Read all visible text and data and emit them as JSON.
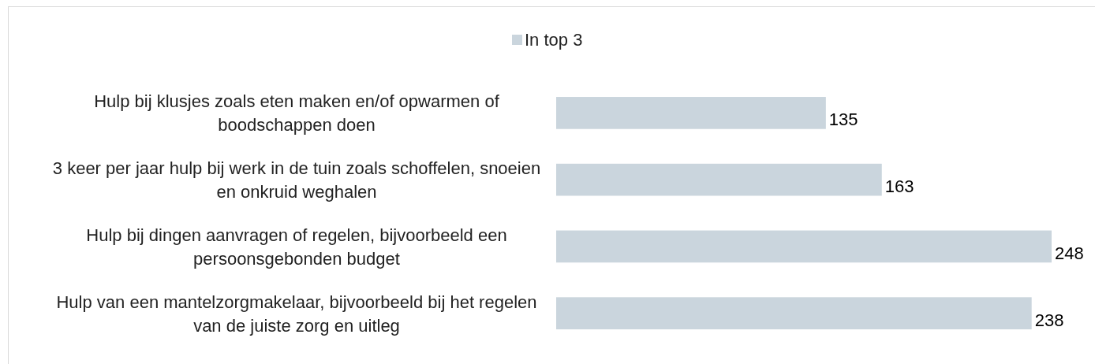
{
  "chart_data": {
    "type": "bar",
    "orientation": "horizontal",
    "data_labels": true,
    "legend": "top",
    "categories": [
      "Hulp bij klusjes zoals eten maken en/of opwarmen of boodschappen doen",
      "3 keer per jaar hulp bij werk in de tuin zoals schoffelen, snoeien en onkruid weghalen",
      "Hulp bij dingen aanvragen of regelen, bijvoorbeeld een persoonsgebonden budget",
      "Hulp van een mantelzorgmakelaar, bijvoorbeeld bij het regelen van de juiste zorg en uitleg"
    ],
    "series": [
      {
        "name": "In top 3",
        "color": "#cad5dd",
        "values": [
          135,
          163,
          248,
          238
        ]
      }
    ]
  }
}
